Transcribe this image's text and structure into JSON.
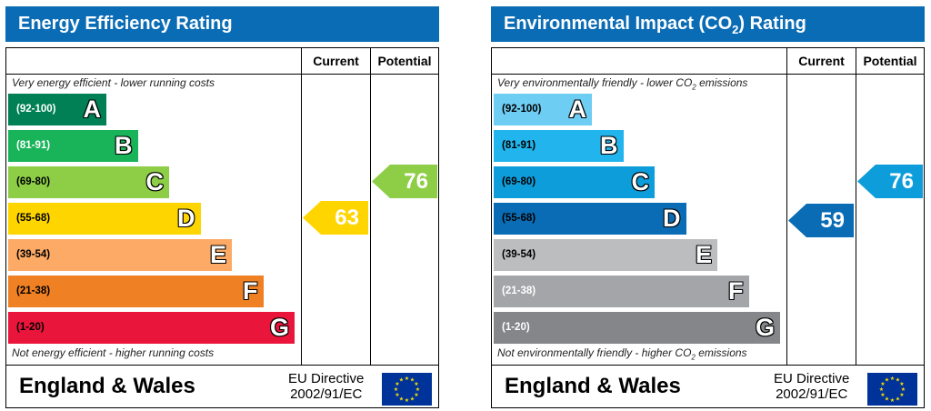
{
  "chart_data": [
    {
      "type": "bar",
      "title": "Energy Efficiency Rating",
      "columns": [
        "Current",
        "Potential"
      ],
      "top_note": "Very energy efficient - lower running costs",
      "bottom_note": "Not energy efficient - higher running costs",
      "bands": [
        {
          "range": "(92-100)",
          "letter": "A",
          "color": "#008054",
          "text_color": "#ffffff"
        },
        {
          "range": "(81-91)",
          "letter": "B",
          "color": "#19b459",
          "text_color": "#ffffff"
        },
        {
          "range": "(69-80)",
          "letter": "C",
          "color": "#8dce46",
          "text_color": "#000000"
        },
        {
          "range": "(55-68)",
          "letter": "D",
          "color": "#ffd500",
          "text_color": "#000000"
        },
        {
          "range": "(39-54)",
          "letter": "E",
          "color": "#fcaa65",
          "text_color": "#000000"
        },
        {
          "range": "(21-38)",
          "letter": "F",
          "color": "#ef8023",
          "text_color": "#000000"
        },
        {
          "range": "(1-20)",
          "letter": "G",
          "color": "#e9153b",
          "text_color": "#000000"
        }
      ],
      "current": {
        "value": 63,
        "band": "D",
        "color": "#ffd500"
      },
      "potential": {
        "value": 76,
        "band": "C",
        "color": "#8dce46"
      },
      "footer": {
        "region": "England & Wales",
        "directive_line1": "EU Directive",
        "directive_line2": "2002/91/EC"
      }
    },
    {
      "type": "bar",
      "title_main": "Environmental Impact (CO",
      "title_sub": "2",
      "title_end": ") Rating",
      "columns": [
        "Current",
        "Potential"
      ],
      "top_note": "Very environmentally friendly - lower CO",
      "top_note_sub": "2",
      "top_note_end": " emissions",
      "bottom_note": "Not environmentally friendly - higher CO",
      "bottom_note_sub": "2",
      "bottom_note_end": " emissions",
      "bands": [
        {
          "range": "(92-100)",
          "letter": "A",
          "color": "#6ecdf3",
          "text_color": "#000000"
        },
        {
          "range": "(81-91)",
          "letter": "B",
          "color": "#22b4ec",
          "text_color": "#000000"
        },
        {
          "range": "(69-80)",
          "letter": "C",
          "color": "#0d9ddb",
          "text_color": "#000000"
        },
        {
          "range": "(55-68)",
          "letter": "D",
          "color": "#0a6cb5",
          "text_color": "#000000"
        },
        {
          "range": "(39-54)",
          "letter": "E",
          "color": "#bbbdbf",
          "text_color": "#000000"
        },
        {
          "range": "(21-38)",
          "letter": "F",
          "color": "#a3a5a8",
          "text_color": "#ffffff"
        },
        {
          "range": "(1-20)",
          "letter": "G",
          "color": "#848689",
          "text_color": "#ffffff"
        }
      ],
      "current": {
        "value": 59,
        "band": "D",
        "color": "#0a6cb5"
      },
      "potential": {
        "value": 76,
        "band": "C",
        "color": "#0d9ddb"
      },
      "footer": {
        "region": "England & Wales",
        "directive_line1": "EU Directive",
        "directive_line2": "2002/91/EC"
      }
    }
  ]
}
